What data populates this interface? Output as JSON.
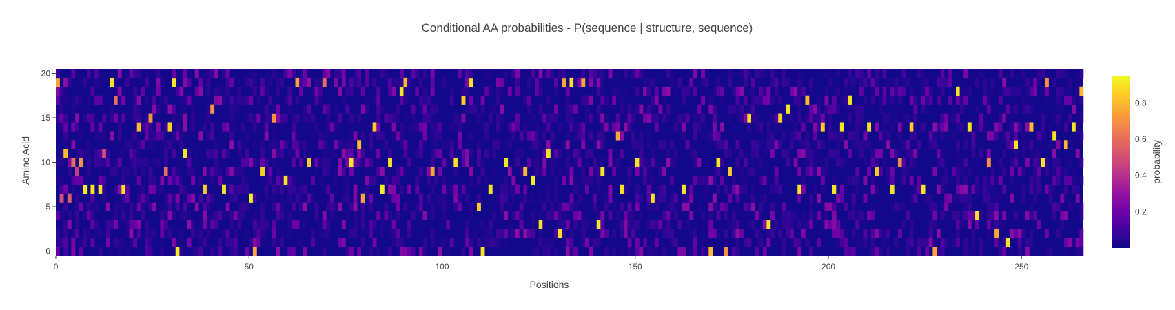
{
  "chart_data": {
    "type": "heatmap",
    "title": "Conditional AA probabilities - P(sequence | structure, sequence)",
    "xlabel": "Positions",
    "ylabel": "Amino Acid",
    "x_range": [
      0,
      266
    ],
    "y_range": [
      0,
      20
    ],
    "x_ticks": [
      0,
      50,
      100,
      150,
      200,
      250
    ],
    "y_ticks": [
      0,
      5,
      10,
      15,
      20
    ],
    "n_positions": 266,
    "n_amino_acids": 21,
    "colorscale": "plasma",
    "colorscale_stops": [
      "#0d0887",
      "#46039f",
      "#7201a8",
      "#9c179e",
      "#bd3786",
      "#d8576b",
      "#ed7953",
      "#fb9f3a",
      "#fdca26",
      "#f0f921"
    ],
    "colorbar": {
      "title": "probability",
      "range": [
        0,
        0.95
      ],
      "ticks": [
        0.2,
        0.4,
        0.6,
        0.8
      ]
    },
    "high_probability_cells": [
      {
        "x": 0,
        "y": 19,
        "v": 0.75
      },
      {
        "x": 1,
        "y": 6,
        "v": 0.5
      },
      {
        "x": 2,
        "y": 11,
        "v": 0.8
      },
      {
        "x": 3,
        "y": 6,
        "v": 0.55
      },
      {
        "x": 4,
        "y": 10,
        "v": 0.6
      },
      {
        "x": 5,
        "y": 9,
        "v": 0.45
      },
      {
        "x": 6,
        "y": 10,
        "v": 0.7
      },
      {
        "x": 7,
        "y": 7,
        "v": 0.92
      },
      {
        "x": 9,
        "y": 7,
        "v": 0.9
      },
      {
        "x": 11,
        "y": 7,
        "v": 0.9
      },
      {
        "x": 12,
        "y": 11,
        "v": 0.5
      },
      {
        "x": 14,
        "y": 19,
        "v": 0.9
      },
      {
        "x": 15,
        "y": 17,
        "v": 0.6
      },
      {
        "x": 17,
        "y": 7,
        "v": 0.9
      },
      {
        "x": 21,
        "y": 14,
        "v": 0.8
      },
      {
        "x": 24,
        "y": 15,
        "v": 0.7
      },
      {
        "x": 28,
        "y": 9,
        "v": 0.6
      },
      {
        "x": 29,
        "y": 14,
        "v": 0.85
      },
      {
        "x": 30,
        "y": 19,
        "v": 0.9
      },
      {
        "x": 31,
        "y": 0,
        "v": 0.92
      },
      {
        "x": 33,
        "y": 11,
        "v": 0.9
      },
      {
        "x": 38,
        "y": 7,
        "v": 0.85
      },
      {
        "x": 40,
        "y": 16,
        "v": 0.7
      },
      {
        "x": 43,
        "y": 7,
        "v": 0.9
      },
      {
        "x": 50,
        "y": 6,
        "v": 0.95
      },
      {
        "x": 51,
        "y": 0,
        "v": 0.75
      },
      {
        "x": 53,
        "y": 9,
        "v": 0.85
      },
      {
        "x": 56,
        "y": 15,
        "v": 0.7
      },
      {
        "x": 59,
        "y": 8,
        "v": 0.9
      },
      {
        "x": 62,
        "y": 19,
        "v": 0.75
      },
      {
        "x": 65,
        "y": 10,
        "v": 0.85
      },
      {
        "x": 69,
        "y": 19,
        "v": 0.6
      },
      {
        "x": 76,
        "y": 10,
        "v": 0.9
      },
      {
        "x": 78,
        "y": 12,
        "v": 0.8
      },
      {
        "x": 79,
        "y": 6,
        "v": 0.75
      },
      {
        "x": 82,
        "y": 14,
        "v": 0.85
      },
      {
        "x": 84,
        "y": 7,
        "v": 0.92
      },
      {
        "x": 86,
        "y": 10,
        "v": 0.9
      },
      {
        "x": 89,
        "y": 18,
        "v": 0.9
      },
      {
        "x": 90,
        "y": 19,
        "v": 0.8
      },
      {
        "x": 97,
        "y": 9,
        "v": 0.75
      },
      {
        "x": 103,
        "y": 10,
        "v": 0.9
      },
      {
        "x": 105,
        "y": 17,
        "v": 0.85
      },
      {
        "x": 107,
        "y": 19,
        "v": 0.9
      },
      {
        "x": 109,
        "y": 5,
        "v": 0.85
      },
      {
        "x": 110,
        "y": 0,
        "v": 0.9
      },
      {
        "x": 112,
        "y": 7,
        "v": 0.9
      },
      {
        "x": 116,
        "y": 10,
        "v": 0.9
      },
      {
        "x": 121,
        "y": 9,
        "v": 0.8
      },
      {
        "x": 123,
        "y": 8,
        "v": 0.92
      },
      {
        "x": 125,
        "y": 3,
        "v": 0.9
      },
      {
        "x": 127,
        "y": 11,
        "v": 0.9
      },
      {
        "x": 130,
        "y": 2,
        "v": 0.9
      },
      {
        "x": 131,
        "y": 19,
        "v": 0.75
      },
      {
        "x": 133,
        "y": 19,
        "v": 0.9
      },
      {
        "x": 136,
        "y": 19,
        "v": 0.75
      },
      {
        "x": 140,
        "y": 3,
        "v": 0.9
      },
      {
        "x": 141,
        "y": 9,
        "v": 0.9
      },
      {
        "x": 145,
        "y": 13,
        "v": 0.75
      },
      {
        "x": 146,
        "y": 7,
        "v": 0.9
      },
      {
        "x": 150,
        "y": 10,
        "v": 0.9
      },
      {
        "x": 154,
        "y": 6,
        "v": 0.9
      },
      {
        "x": 162,
        "y": 7,
        "v": 0.9
      },
      {
        "x": 169,
        "y": 0,
        "v": 0.8
      },
      {
        "x": 171,
        "y": 10,
        "v": 0.9
      },
      {
        "x": 173,
        "y": 0,
        "v": 0.7
      },
      {
        "x": 174,
        "y": 9,
        "v": 0.85
      },
      {
        "x": 179,
        "y": 15,
        "v": 0.9
      },
      {
        "x": 184,
        "y": 3,
        "v": 0.9
      },
      {
        "x": 187,
        "y": 15,
        "v": 0.85
      },
      {
        "x": 189,
        "y": 16,
        "v": 0.9
      },
      {
        "x": 192,
        "y": 7,
        "v": 0.9
      },
      {
        "x": 194,
        "y": 17,
        "v": 0.8
      },
      {
        "x": 198,
        "y": 14,
        "v": 0.85
      },
      {
        "x": 201,
        "y": 7,
        "v": 0.9
      },
      {
        "x": 203,
        "y": 14,
        "v": 0.9
      },
      {
        "x": 205,
        "y": 17,
        "v": 0.9
      },
      {
        "x": 210,
        "y": 14,
        "v": 0.9
      },
      {
        "x": 212,
        "y": 9,
        "v": 0.85
      },
      {
        "x": 216,
        "y": 7,
        "v": 0.9
      },
      {
        "x": 218,
        "y": 10,
        "v": 0.7
      },
      {
        "x": 221,
        "y": 14,
        "v": 0.85
      },
      {
        "x": 224,
        "y": 7,
        "v": 0.9
      },
      {
        "x": 227,
        "y": 0,
        "v": 0.75
      },
      {
        "x": 233,
        "y": 18,
        "v": 0.9
      },
      {
        "x": 236,
        "y": 14,
        "v": 0.9
      },
      {
        "x": 238,
        "y": 4,
        "v": 0.9
      },
      {
        "x": 241,
        "y": 10,
        "v": 0.7
      },
      {
        "x": 243,
        "y": 2,
        "v": 0.75
      },
      {
        "x": 246,
        "y": 1,
        "v": 0.9
      },
      {
        "x": 248,
        "y": 12,
        "v": 0.9
      },
      {
        "x": 252,
        "y": 14,
        "v": 0.8
      },
      {
        "x": 255,
        "y": 10,
        "v": 0.9
      },
      {
        "x": 256,
        "y": 19,
        "v": 0.7
      },
      {
        "x": 258,
        "y": 13,
        "v": 0.9
      },
      {
        "x": 261,
        "y": 12,
        "v": 0.8
      },
      {
        "x": 263,
        "y": 14,
        "v": 0.9
      },
      {
        "x": 265,
        "y": 18,
        "v": 0.8
      }
    ]
  }
}
